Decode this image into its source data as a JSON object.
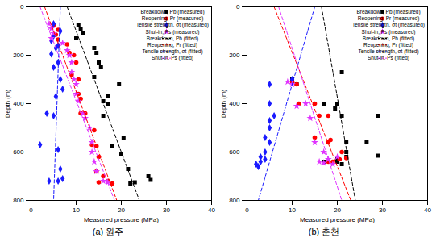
{
  "chart_data": [
    {
      "type": "scatter",
      "title": "(a) 원주",
      "x_label": "Measured pressure (MPa)",
      "y_label": "Depth (m)",
      "xlim": [
        0,
        40
      ],
      "ylim": [
        0,
        800
      ],
      "xticks": [
        0,
        10,
        20,
        30,
        40
      ],
      "yticks": [
        0,
        200,
        400,
        600,
        800
      ],
      "grid": false,
      "legend": "upper right",
      "series": [
        {
          "name": "Breakdown, Pb (measured)",
          "type": "scatter",
          "marker": "square",
          "color": "#000000",
          "values": [
            [
              10.5,
              75
            ],
            [
              11,
              90
            ],
            [
              11.5,
              110
            ],
            [
              10,
              130
            ],
            [
              14,
              170
            ],
            [
              14.5,
              190
            ],
            [
              15,
              230
            ],
            [
              15.5,
              250
            ],
            [
              14,
              290
            ],
            [
              19.5,
              320
            ],
            [
              17,
              370
            ],
            [
              16,
              390
            ],
            [
              17,
              400
            ],
            [
              16,
              450
            ],
            [
              20.5,
              540
            ],
            [
              18,
              575
            ],
            [
              20,
              610
            ],
            [
              21.5,
              670
            ],
            [
              26,
              700
            ],
            [
              26.5,
              715
            ],
            [
              23,
              725
            ],
            [
              22,
              730
            ]
          ]
        },
        {
          "name": "Reopening, Pr (measured)",
          "type": "scatter",
          "marker": "circle",
          "color": "#ff0000",
          "values": [
            [
              5,
              75
            ],
            [
              6,
              95
            ],
            [
              5.5,
              115
            ],
            [
              6,
              135
            ],
            [
              8,
              155
            ],
            [
              8.5,
              190
            ],
            [
              9.5,
              200
            ],
            [
              10,
              230
            ],
            [
              9,
              280
            ],
            [
              10.5,
              300
            ],
            [
              10.5,
              360
            ],
            [
              11,
              380
            ],
            [
              11,
              440
            ],
            [
              12,
              440
            ],
            [
              14,
              510
            ],
            [
              13.5,
              570
            ],
            [
              14.5,
              575
            ],
            [
              15,
              620
            ],
            [
              14.5,
              680
            ],
            [
              16,
              700
            ],
            [
              17,
              720
            ],
            [
              18,
              730
            ],
            [
              15,
              725
            ]
          ]
        },
        {
          "name": "Tensile strength, σt (measured)",
          "type": "scatter",
          "marker": "diamond",
          "color": "#1a1aff",
          "values": [
            [
              5,
              70
            ],
            [
              6.5,
              100
            ],
            [
              5,
              120
            ],
            [
              4.5,
              140
            ],
            [
              6,
              160
            ],
            [
              5.5,
              170
            ],
            [
              4.5,
              195
            ],
            [
              6,
              230
            ],
            [
              5,
              250
            ],
            [
              6.5,
              300
            ],
            [
              7,
              340
            ],
            [
              5.5,
              370
            ],
            [
              3.5,
              440
            ],
            [
              5,
              450
            ],
            [
              2,
              570
            ],
            [
              6,
              590
            ],
            [
              6.5,
              670
            ],
            [
              6,
              720
            ],
            [
              4,
              720
            ],
            [
              7,
              710
            ]
          ]
        },
        {
          "name": "Shut-in, Ps (measured)",
          "type": "scatter",
          "marker": "star",
          "color": "#e033ff",
          "values": [
            [
              4,
              70
            ],
            [
              4.5,
              90
            ],
            [
              5,
              110
            ],
            [
              4.5,
              130
            ],
            [
              7,
              150
            ],
            [
              8,
              180
            ],
            [
              8.5,
              200
            ],
            [
              9,
              230
            ],
            [
              9,
              270
            ],
            [
              9.5,
              300
            ],
            [
              10,
              320
            ],
            [
              10,
              360
            ],
            [
              10.5,
              390
            ],
            [
              11.5,
              440
            ],
            [
              12,
              460
            ],
            [
              13,
              500
            ],
            [
              13.5,
              560
            ],
            [
              13.5,
              600
            ],
            [
              14,
              640
            ],
            [
              14.5,
              680
            ],
            [
              16,
              720
            ],
            [
              17,
              725
            ]
          ]
        },
        {
          "name": "Breakdown, Pb (fitted)",
          "type": "line",
          "line_style": "dashed",
          "color": "#000000",
          "values": [
            [
              8,
              0
            ],
            [
              24,
              800
            ]
          ]
        },
        {
          "name": "Reopening, Pr (fitted)",
          "type": "line",
          "line_style": "dashed",
          "color": "#ff0000",
          "values": [
            [
              3,
              0
            ],
            [
              19,
              800
            ]
          ]
        },
        {
          "name": "Tensile strength, σt (fitted)",
          "type": "line",
          "line_style": "dashed",
          "color": "#1a1aff",
          "values": [
            [
              6.5,
              0
            ],
            [
              5,
              800
            ]
          ]
        },
        {
          "name": "Shut-in, Ps (fitted)",
          "type": "line",
          "line_style": "dashed",
          "color": "#e033ff",
          "values": [
            [
              2,
              0
            ],
            [
              18.5,
              800
            ]
          ]
        }
      ]
    },
    {
      "type": "scatter",
      "title": "(b) 춘천",
      "x_label": "Measured pressure (MPa)",
      "y_label": "Depth (m)",
      "xlim": [
        0,
        40
      ],
      "ylim": [
        0,
        800
      ],
      "xticks": [
        0,
        10,
        20,
        30,
        40
      ],
      "yticks": [
        0,
        200,
        400,
        600,
        800
      ],
      "grid": false,
      "legend": "upper right",
      "series": [
        {
          "name": "Breakdown, Pb (measured)",
          "type": "scatter",
          "marker": "square",
          "color": "#000000",
          "values": [
            [
              10,
              300
            ],
            [
              11,
              320
            ],
            [
              21,
              270
            ],
            [
              17,
              400
            ],
            [
              19.5,
              420
            ],
            [
              20,
              400
            ],
            [
              21,
              450
            ],
            [
              29,
              450
            ],
            [
              26.5,
              560
            ],
            [
              22,
              560
            ],
            [
              22,
              600
            ],
            [
              29,
              615
            ],
            [
              22,
              620
            ],
            [
              20,
              630
            ],
            [
              20,
              640
            ],
            [
              21,
              650
            ],
            [
              17,
              640
            ]
          ]
        },
        {
          "name": "Reopening, Pr (measured)",
          "type": "scatter",
          "marker": "circle",
          "color": "#ff0000",
          "values": [
            [
              10,
              310
            ],
            [
              11,
              320
            ],
            [
              11.5,
              400
            ],
            [
              15,
              400
            ],
            [
              16,
              450
            ],
            [
              18,
              450
            ],
            [
              15,
              540
            ],
            [
              18.5,
              550
            ],
            [
              18,
              560
            ],
            [
              21,
              600
            ],
            [
              22,
              625
            ],
            [
              20.5,
              630
            ],
            [
              19,
              640
            ],
            [
              18,
              640
            ]
          ]
        },
        {
          "name": "Tensile strength, σt (measured)",
          "type": "scatter",
          "marker": "diamond",
          "color": "#1a1aff",
          "values": [
            [
              10,
              300
            ],
            [
              5,
              320
            ],
            [
              5,
              400
            ],
            [
              6,
              450
            ],
            [
              5,
              470
            ],
            [
              5,
              500
            ],
            [
              4,
              540
            ],
            [
              5,
              560
            ],
            [
              4,
              600
            ],
            [
              3,
              620
            ],
            [
              4,
              630
            ],
            [
              3,
              640
            ],
            [
              2,
              650
            ],
            [
              2.5,
              660
            ]
          ]
        },
        {
          "name": "Shut-in, Ps (measured)",
          "type": "scatter",
          "marker": "star",
          "color": "#e033ff",
          "values": [
            [
              9,
              310
            ],
            [
              10,
              320
            ],
            [
              13,
              400
            ],
            [
              11,
              410
            ],
            [
              14,
              460
            ],
            [
              15,
              560
            ],
            [
              17,
              600
            ],
            [
              20,
              620
            ],
            [
              18,
              630
            ],
            [
              16,
              640
            ],
            [
              17,
              645
            ],
            [
              19,
              650
            ]
          ]
        },
        {
          "name": "Breakdown, Pb (fitted)",
          "type": "line",
          "line_style": "dashed",
          "color": "#000000",
          "values": [
            [
              16.5,
              0
            ],
            [
              24,
              800
            ]
          ]
        },
        {
          "name": "Reopening, Pr (fitted)",
          "type": "line",
          "line_style": "dashed",
          "color": "#ff0000",
          "values": [
            [
              6,
              0
            ],
            [
              23,
              800
            ]
          ]
        },
        {
          "name": "Tensile strength, σt (fitted)",
          "type": "line",
          "line_style": "dashed",
          "color": "#1a1aff",
          "values": [
            [
              15,
              0
            ],
            [
              2.5,
              800
            ]
          ]
        },
        {
          "name": "Shut-in, Ps (fitted)",
          "type": "line",
          "line_style": "dashed",
          "color": "#e033ff",
          "values": [
            [
              7,
              0
            ],
            [
              21,
              800
            ]
          ]
        }
      ]
    }
  ]
}
